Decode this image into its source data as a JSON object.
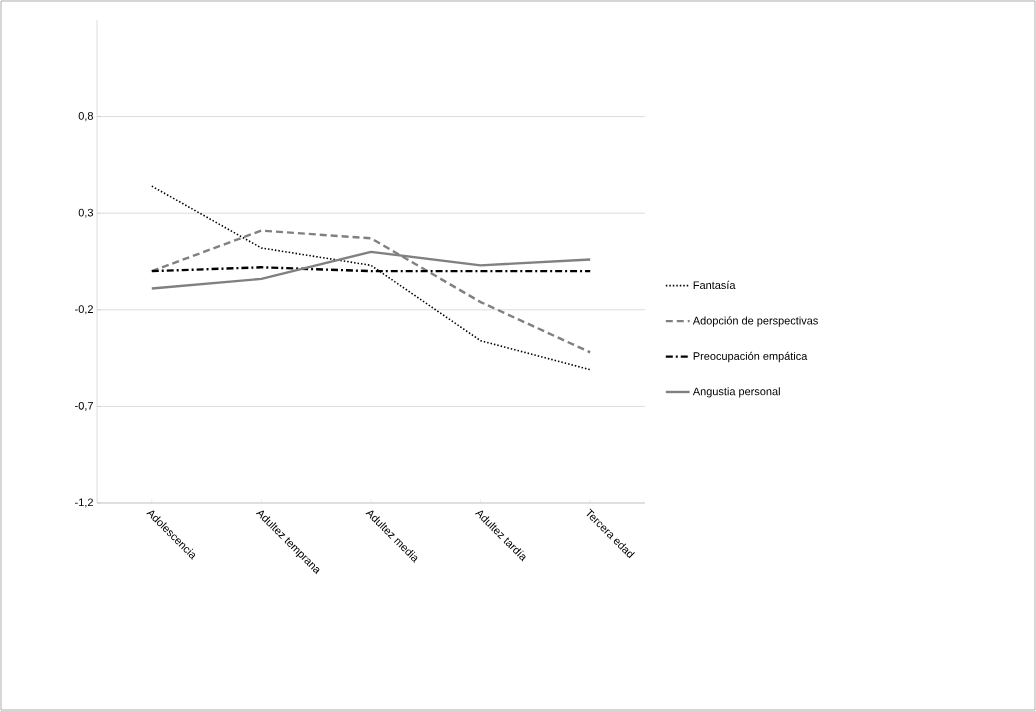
{
  "chart_data": {
    "type": "line",
    "categories": [
      "Adolescencia",
      "Adultez temprana",
      "Adultez media",
      "Adultez tardía",
      "Tercera edad"
    ],
    "ylim": [
      -1.2,
      1.3
    ],
    "yticks": [
      {
        "value": -1.2,
        "label": "-1,2"
      },
      {
        "value": -0.7,
        "label": "-0,7"
      },
      {
        "value": -0.2,
        "label": "-0,2"
      },
      {
        "value": 0.3,
        "label": "0,3"
      },
      {
        "value": 0.8,
        "label": "0,8"
      }
    ],
    "grid": "y",
    "legend": "right",
    "series": [
      {
        "name": "Fantasía",
        "color": "#000000",
        "line_style": "dotted",
        "values": [
          0.44,
          0.12,
          0.03,
          -0.36,
          -0.51
        ]
      },
      {
        "name": "Adopción de perspectivas",
        "color": "#808080",
        "line_style": "dashed",
        "values": [
          0.0,
          0.21,
          0.17,
          -0.16,
          -0.42
        ]
      },
      {
        "name": "Preocupación empática",
        "color": "#000000",
        "line_style": "dashdot",
        "values": [
          0.0,
          0.02,
          0.0,
          0.0,
          0.0
        ]
      },
      {
        "name": "Angustia personal",
        "color": "#808080",
        "line_style": "solid",
        "values": [
          -0.09,
          -0.04,
          0.1,
          0.03,
          0.06
        ]
      }
    ]
  }
}
